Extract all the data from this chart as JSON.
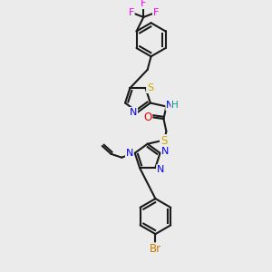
{
  "bg": "#ebebeb",
  "bond_color": "#1a1a1a",
  "bond_lw": 1.5,
  "colors": {
    "C": "#1a1a1a",
    "N": "#0000ee",
    "O": "#ee0000",
    "S": "#ccaa00",
    "F": "#ee00ee",
    "Br": "#cc7700",
    "H": "#009999"
  },
  "figsize": [
    3.0,
    3.0
  ],
  "dpi": 100
}
